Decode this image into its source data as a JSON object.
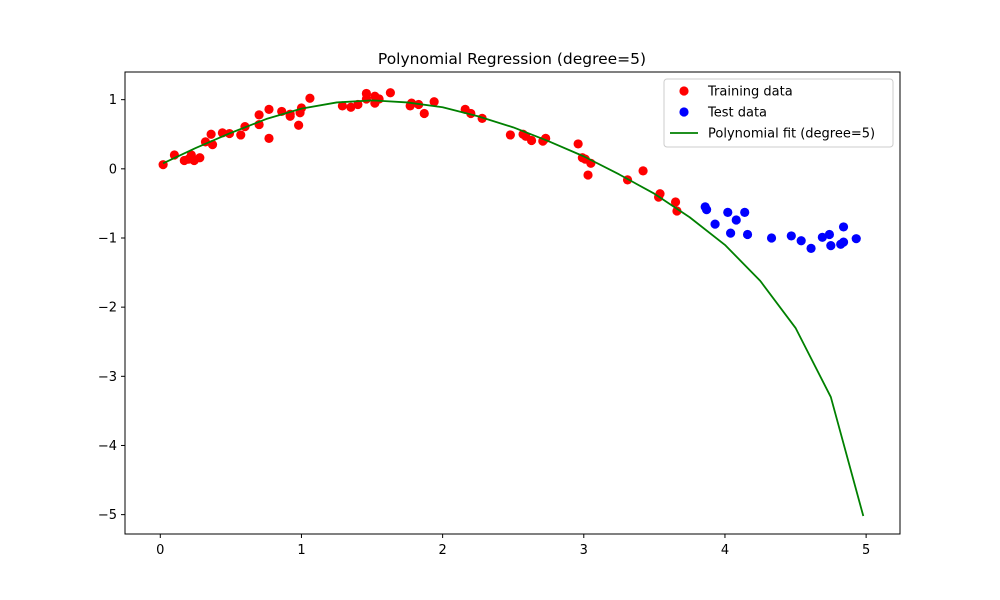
{
  "chart_data": {
    "type": "scatter",
    "title": "Polynomial Regression (degree=5)",
    "xlabel": "",
    "ylabel": "",
    "xlim": [
      -0.25,
      5.24
    ],
    "ylim": [
      -5.28,
      1.4
    ],
    "xticks": [
      0,
      1,
      2,
      3,
      4,
      5
    ],
    "yticks": [
      1,
      0,
      -1,
      -2,
      -3,
      -4,
      -5
    ],
    "xtick_labels": [
      "0",
      "1",
      "2",
      "3",
      "4",
      "5"
    ],
    "ytick_labels": [
      "1",
      "0",
      "−1",
      "−2",
      "−3",
      "−4",
      "−5"
    ],
    "grid": false,
    "legend_position": "top-right",
    "series": [
      {
        "name": "Training data",
        "kind": "scatter",
        "color": "#ff0000",
        "points": [
          [
            0.02,
            0.06
          ],
          [
            0.1,
            0.2
          ],
          [
            0.17,
            0.12
          ],
          [
            0.2,
            0.14
          ],
          [
            0.22,
            0.2
          ],
          [
            0.24,
            0.12
          ],
          [
            0.28,
            0.16
          ],
          [
            0.32,
            0.39
          ],
          [
            0.36,
            0.5
          ],
          [
            0.37,
            0.35
          ],
          [
            0.44,
            0.52
          ],
          [
            0.49,
            0.51
          ],
          [
            0.57,
            0.49
          ],
          [
            0.6,
            0.61
          ],
          [
            0.7,
            0.78
          ],
          [
            0.7,
            0.64
          ],
          [
            0.77,
            0.86
          ],
          [
            0.77,
            0.44
          ],
          [
            0.86,
            0.83
          ],
          [
            0.92,
            0.79
          ],
          [
            0.92,
            0.76
          ],
          [
            0.98,
            0.63
          ],
          [
            0.99,
            0.81
          ],
          [
            1.0,
            0.88
          ],
          [
            1.06,
            1.02
          ],
          [
            1.29,
            0.91
          ],
          [
            1.35,
            0.89
          ],
          [
            1.4,
            0.93
          ],
          [
            1.46,
            1.09
          ],
          [
            1.46,
            1.01
          ],
          [
            1.52,
            1.05
          ],
          [
            1.52,
            0.95
          ],
          [
            1.55,
            1.01
          ],
          [
            1.63,
            1.1
          ],
          [
            1.77,
            0.91
          ],
          [
            1.78,
            0.95
          ],
          [
            1.83,
            0.93
          ],
          [
            1.87,
            0.8
          ],
          [
            1.94,
            0.97
          ],
          [
            2.16,
            0.86
          ],
          [
            2.2,
            0.8
          ],
          [
            2.28,
            0.73
          ],
          [
            2.48,
            0.49
          ],
          [
            2.57,
            0.5
          ],
          [
            2.59,
            0.47
          ],
          [
            2.63,
            0.41
          ],
          [
            2.71,
            0.4
          ],
          [
            2.73,
            0.44
          ],
          [
            2.96,
            0.36
          ],
          [
            2.99,
            0.16
          ],
          [
            3.01,
            0.14
          ],
          [
            3.03,
            -0.09
          ],
          [
            3.05,
            0.08
          ],
          [
            3.31,
            -0.16
          ],
          [
            3.42,
            -0.03
          ],
          [
            3.53,
            -0.41
          ],
          [
            3.54,
            -0.36
          ],
          [
            3.65,
            -0.48
          ],
          [
            3.66,
            -0.61
          ]
        ]
      },
      {
        "name": "Test data",
        "kind": "scatter",
        "color": "#0000ff",
        "points": [
          [
            3.86,
            -0.55
          ],
          [
            3.87,
            -0.59
          ],
          [
            3.93,
            -0.8
          ],
          [
            4.02,
            -0.63
          ],
          [
            4.04,
            -0.93
          ],
          [
            4.08,
            -0.74
          ],
          [
            4.14,
            -0.63
          ],
          [
            4.16,
            -0.95
          ],
          [
            4.33,
            -1.0
          ],
          [
            4.47,
            -0.97
          ],
          [
            4.54,
            -1.04
          ],
          [
            4.61,
            -1.15
          ],
          [
            4.69,
            -0.99
          ],
          [
            4.74,
            -0.95
          ],
          [
            4.75,
            -1.11
          ],
          [
            4.82,
            -1.09
          ],
          [
            4.84,
            -1.06
          ],
          [
            4.84,
            -0.84
          ],
          [
            4.93,
            -1.01
          ]
        ]
      },
      {
        "name": "Polynomial fit (degree=5)",
        "kind": "line",
        "color": "#008000",
        "points": [
          [
            0.02,
            0.08
          ],
          [
            0.25,
            0.3
          ],
          [
            0.5,
            0.52
          ],
          [
            0.75,
            0.72
          ],
          [
            1.0,
            0.87
          ],
          [
            1.25,
            0.96
          ],
          [
            1.5,
            0.99
          ],
          [
            1.75,
            0.96
          ],
          [
            2.0,
            0.89
          ],
          [
            2.25,
            0.76
          ],
          [
            2.5,
            0.6
          ],
          [
            2.75,
            0.4
          ],
          [
            3.0,
            0.18
          ],
          [
            3.25,
            -0.08
          ],
          [
            3.5,
            -0.36
          ],
          [
            3.75,
            -0.7
          ],
          [
            4.0,
            -1.1
          ],
          [
            4.25,
            -1.62
          ],
          [
            4.5,
            -2.3
          ],
          [
            4.75,
            -3.3
          ],
          [
            4.98,
            -5.02
          ]
        ]
      }
    ]
  }
}
